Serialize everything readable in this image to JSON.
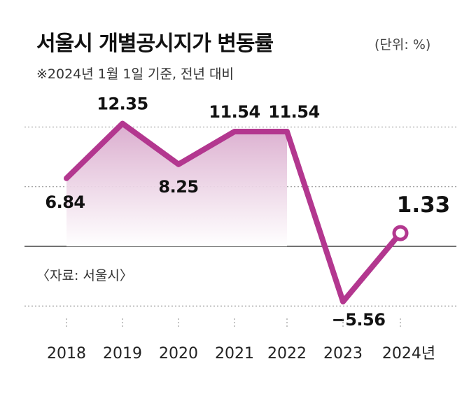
{
  "title": "서울시 개별공시지가 변동률",
  "unit": "(단위: %)",
  "subtitle": "※2024년 1월 1일 기준, 전년 대비",
  "source": "〈자료: 서울시〉",
  "colors": {
    "line": "#b3378f",
    "fill_top": "#d9a9cc",
    "grid": "#888888",
    "zero": "#444444"
  },
  "chart_data": {
    "type": "line",
    "title": "서울시 개별공시지가 변동률",
    "subtitle": "※2024년 1월 1일 기준, 전년 대비",
    "ylabel": "",
    "xlabel": "",
    "categories": [
      "2018",
      "2019",
      "2020",
      "2021",
      "2022",
      "2023",
      "2024년"
    ],
    "values": [
      6.84,
      12.35,
      8.25,
      11.54,
      11.54,
      -5.56,
      1.33
    ],
    "labels": [
      "6.84",
      "12.35",
      "8.25",
      "11.54",
      "11.54",
      "−5.56",
      "1.33"
    ],
    "ylim": [
      -8,
      16
    ],
    "grid": true,
    "legend": "none"
  }
}
